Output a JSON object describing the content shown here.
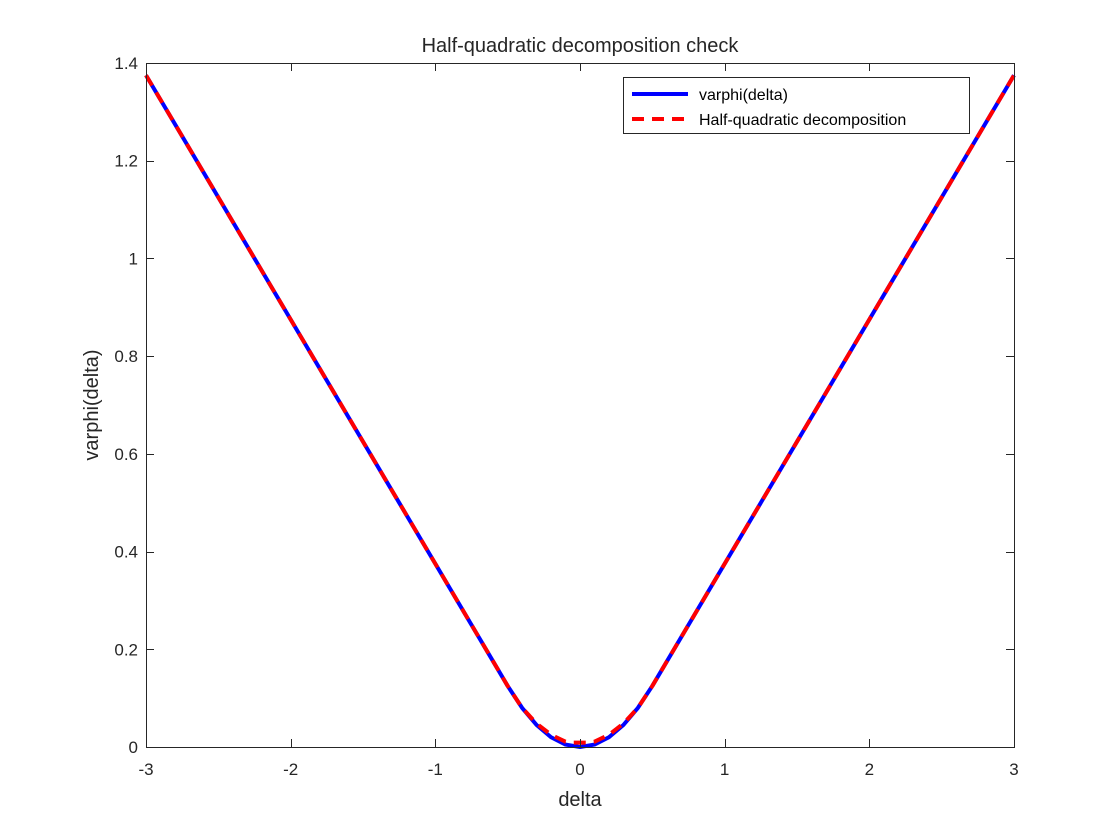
{
  "chart_data": {
    "type": "line",
    "title": "Half-quadratic decomposition check",
    "xlabel": "delta",
    "ylabel": "varphi(delta)",
    "xlim": [
      -3,
      3
    ],
    "ylim": [
      0,
      1.4
    ],
    "xticks": [
      -3,
      -2,
      -1,
      0,
      1,
      2,
      3
    ],
    "xtick_labels": [
      "-3",
      "-2",
      "-1",
      "0",
      "1",
      "2",
      "3"
    ],
    "yticks": [
      0,
      0.2,
      0.4,
      0.6,
      0.8,
      1.0,
      1.2,
      1.4
    ],
    "ytick_labels": [
      "0",
      "0.2",
      "0.4",
      "0.6",
      "0.8",
      "1",
      "1.2",
      "1.4"
    ],
    "grid": false,
    "legend_position": "top-right",
    "series": [
      {
        "name": "varphi(delta)",
        "color": "#0000ff",
        "style": "solid",
        "x": [
          -3,
          -2.5,
          -2,
          -1.5,
          -1,
          -0.75,
          -0.5,
          -0.4,
          -0.3,
          -0.2,
          -0.1,
          0,
          0.1,
          0.2,
          0.3,
          0.4,
          0.5,
          0.75,
          1,
          1.5,
          2,
          2.5,
          3
        ],
        "y": [
          1.375,
          1.125,
          0.875,
          0.625,
          0.375,
          0.25,
          0.125,
          0.08,
          0.045,
          0.02,
          0.005,
          0,
          0.005,
          0.02,
          0.045,
          0.08,
          0.125,
          0.25,
          0.375,
          0.625,
          0.875,
          1.125,
          1.375
        ]
      },
      {
        "name": "Half-quadratic decomposition",
        "color": "#ff0000",
        "style": "dashed",
        "x": [
          -3,
          -2.5,
          -2,
          -1.5,
          -1,
          -0.75,
          -0.5,
          -0.4,
          -0.3,
          -0.2,
          -0.1,
          -0.05,
          0,
          0.05,
          0.1,
          0.2,
          0.3,
          0.4,
          0.5,
          0.75,
          1,
          1.5,
          2,
          2.5,
          3
        ],
        "y": [
          1.375,
          1.125,
          0.875,
          0.625,
          0.375,
          0.25,
          0.125,
          0.08,
          0.048,
          0.025,
          0.011,
          0.009,
          0.009,
          0.009,
          0.011,
          0.025,
          0.048,
          0.08,
          0.125,
          0.25,
          0.375,
          0.625,
          0.875,
          1.125,
          1.375
        ]
      }
    ]
  }
}
